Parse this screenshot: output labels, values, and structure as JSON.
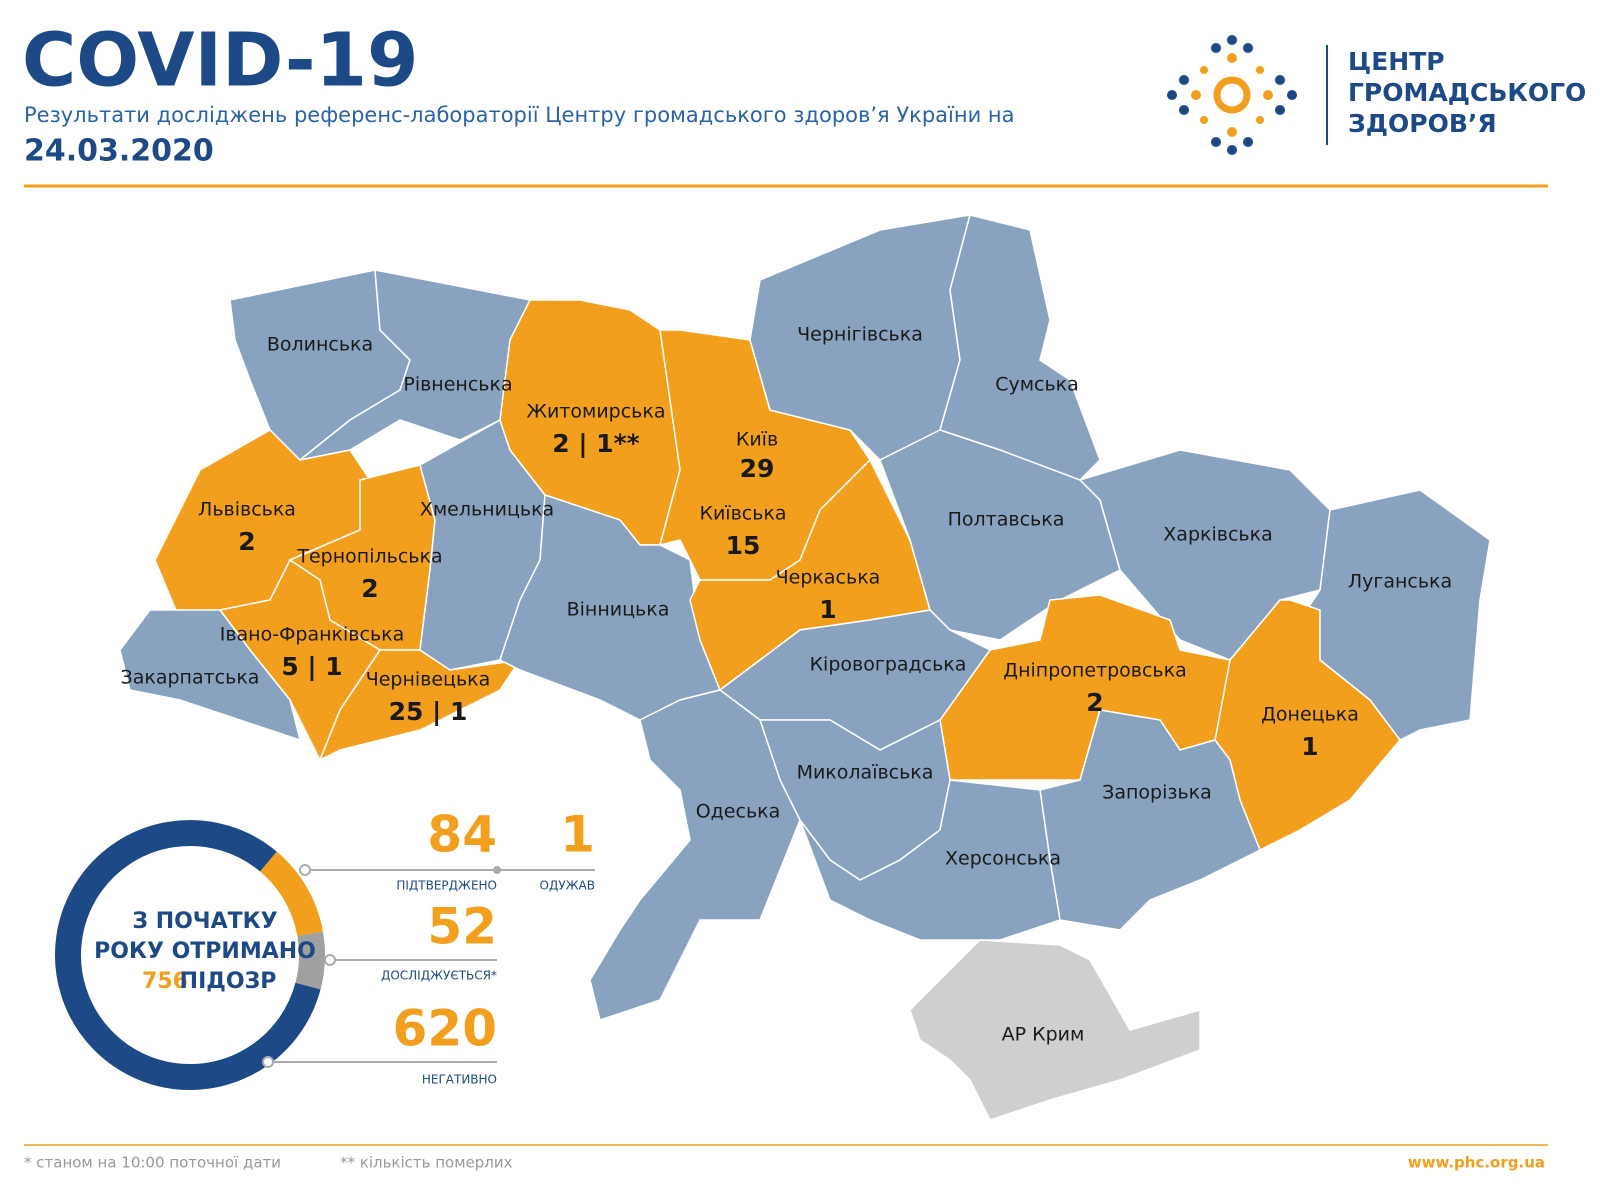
{
  "header": {
    "title": "COVID-19",
    "subtitle": "Результати досліджень референс-лабораторії Центру громадського здоров’я України на",
    "date": "24.03.2020"
  },
  "logo": {
    "lines": [
      "ЦЕНТР",
      "ГРОМАДСЬКОГО",
      "ЗДОРОВ’Я"
    ]
  },
  "regions": [
    {
      "name": "Волинська"
    },
    {
      "name": "Рівненська"
    },
    {
      "name": "Львівська",
      "cases": "2"
    },
    {
      "name": "Тернопільська",
      "cases": "2"
    },
    {
      "name": "Івано-Франківська",
      "cases": "5 | 1"
    },
    {
      "name": "Закарпатська"
    },
    {
      "name": "Чернівецька",
      "cases": "25 | 1"
    },
    {
      "name": "Хмельницька"
    },
    {
      "name": "Житомирська",
      "cases": "2 | 1**"
    },
    {
      "name": "Київська",
      "cases": "15"
    },
    {
      "name": "Вінницька"
    },
    {
      "name": "Черкаська",
      "cases": "1"
    },
    {
      "name": "Чернігівська"
    },
    {
      "name": "Сумська"
    },
    {
      "name": "Полтавська"
    },
    {
      "name": "Харківська"
    },
    {
      "name": "Луганська"
    },
    {
      "name": "Донецька",
      "cases": "1"
    },
    {
      "name": "Дніпропетровська",
      "cases": "2"
    },
    {
      "name": "Запорізька"
    },
    {
      "name": "Кіровоградська"
    },
    {
      "name": "Миколаївська"
    },
    {
      "name": "Одеська"
    },
    {
      "name": "Херсонська"
    },
    {
      "name": "АР Крим"
    }
  ],
  "kyiv_city": {
    "name": "Київ",
    "cases": "29"
  },
  "summary": {
    "lines": [
      "З ПОЧАТКУ",
      "РОКУ ОТРИМАНО"
    ],
    "total": 756,
    "unit": "ПІДОЗР"
  },
  "stats": [
    {
      "value": 84,
      "label": "ПІДТВЕРДЖЕНО"
    },
    {
      "value": 1,
      "label": "ОДУЖАВ"
    },
    {
      "value": 52,
      "label": "ДОСЛІДЖУЄТЬСЯ*"
    },
    {
      "value": 620,
      "label": "НЕГАТИВНО"
    }
  ],
  "footer": {
    "notes": [
      "* станом на 10:00 поточної дати",
      "** кількість померлих"
    ],
    "url": "www.phc.org.ua"
  }
}
